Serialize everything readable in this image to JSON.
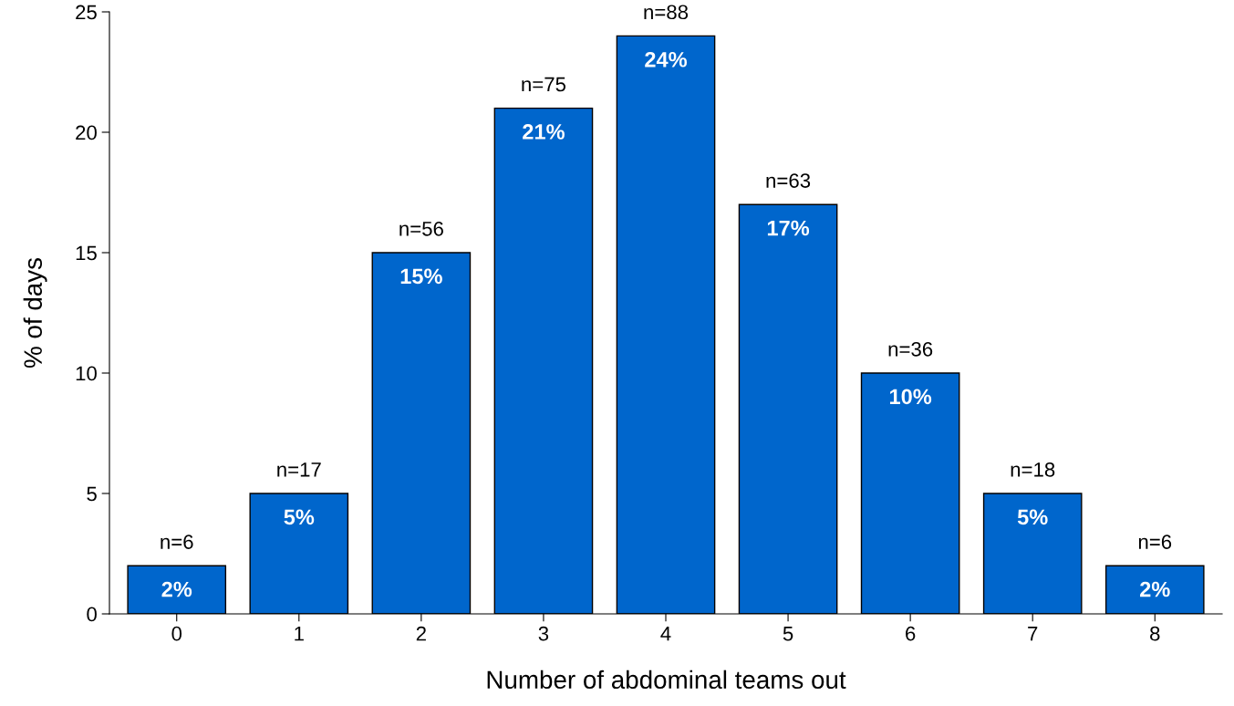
{
  "chart_data": {
    "type": "bar",
    "xlabel": "Number of abdominal teams out",
    "ylabel": "% of days",
    "categories": [
      "0",
      "1",
      "2",
      "3",
      "4",
      "5",
      "6",
      "7",
      "8"
    ],
    "values": [
      2,
      5,
      15,
      21,
      24,
      17,
      10,
      5,
      2
    ],
    "value_labels": [
      "2%",
      "5%",
      "15%",
      "21%",
      "24%",
      "17%",
      "10%",
      "5%",
      "2%"
    ],
    "color": "#0066cc",
    "ylim": [
      0,
      25
    ],
    "yticks": [
      0,
      5,
      10,
      15,
      20,
      25
    ],
    "grid": false,
    "legend": false,
    "annotations": [
      {
        "text": "n=6",
        "x": "0",
        "y": 2
      },
      {
        "text": "n=17",
        "x": "1",
        "y": 5
      },
      {
        "text": "n=56",
        "x": "2",
        "y": 15
      },
      {
        "text": "n=75",
        "x": "3",
        "y": 21
      },
      {
        "text": "n=88",
        "x": "4",
        "y": 24
      },
      {
        "text": "n=63",
        "x": "5",
        "y": 17
      },
      {
        "text": "n=36",
        "x": "6",
        "y": 10
      },
      {
        "text": "n=18",
        "x": "7",
        "y": 5
      },
      {
        "text": "n=6",
        "x": "8",
        "y": 2
      }
    ]
  }
}
